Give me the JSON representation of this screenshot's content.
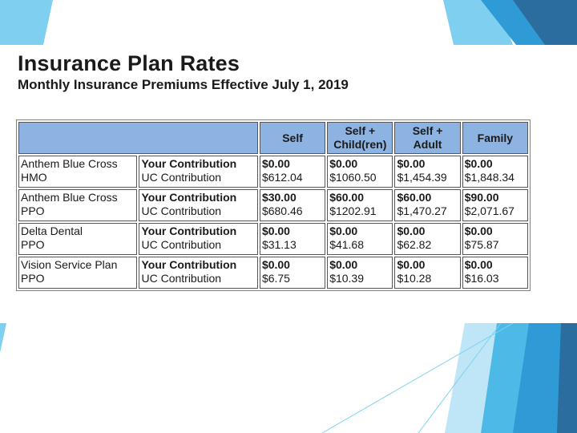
{
  "title": "Insurance Plan Rates",
  "subtitle": "Monthly Insurance Premiums Effective July 1, 2019",
  "table": {
    "headers": {
      "blank": "",
      "self": "Self",
      "self_child_1": "Self +",
      "self_child_2": "Child(ren)",
      "self_adult_1": "Self +",
      "self_adult_2": "Adult",
      "family": "Family"
    },
    "rows": [
      {
        "plan_line1": "Anthem Blue Cross",
        "plan_line2": "HMO",
        "label_line1": "Your Contribution",
        "label_line2": "UC Contribution",
        "self": [
          "$0.00",
          "$612.04"
        ],
        "self_child": [
          "$0.00",
          "$1060.50"
        ],
        "self_adult": [
          "$0.00",
          "$1,454.39"
        ],
        "family": [
          "$0.00",
          "$1,848.34"
        ]
      },
      {
        "plan_line1": "Anthem Blue Cross",
        "plan_line2": "PPO",
        "label_line1": "Your Contribution",
        "label_line2": "UC Contribution",
        "self": [
          "$30.00",
          "$680.46"
        ],
        "self_child": [
          "$60.00",
          "$1202.91"
        ],
        "self_adult": [
          "$60.00",
          "$1,470.27"
        ],
        "family": [
          "$90.00",
          "$2,071.67"
        ]
      },
      {
        "plan_line1": "Delta Dental",
        "plan_line2": "PPO",
        "label_line1": "Your Contribution",
        "label_line2": "UC Contribution",
        "self": [
          "$0.00",
          "$31.13"
        ],
        "self_child": [
          "$0.00",
          "$41.68"
        ],
        "self_adult": [
          "$0.00",
          "$62.82"
        ],
        "family": [
          "$0.00",
          "$75.87"
        ]
      },
      {
        "plan_line1": "Vision Service Plan",
        "plan_line2": "PPO",
        "label_line1": "Your Contribution",
        "label_line2": "UC Contribution",
        "self": [
          "$0.00",
          "$6.75"
        ],
        "self_child": [
          "$0.00",
          "$10.39"
        ],
        "self_adult": [
          "$0.00",
          "$10.28"
        ],
        "family": [
          "$0.00",
          "$16.03"
        ]
      }
    ]
  },
  "colors": {
    "header_fill": "#8db3e2",
    "accent_dark": "#2b6d9e",
    "accent_mid": "#2f9bd6",
    "accent_light": "#7fd0f0"
  }
}
